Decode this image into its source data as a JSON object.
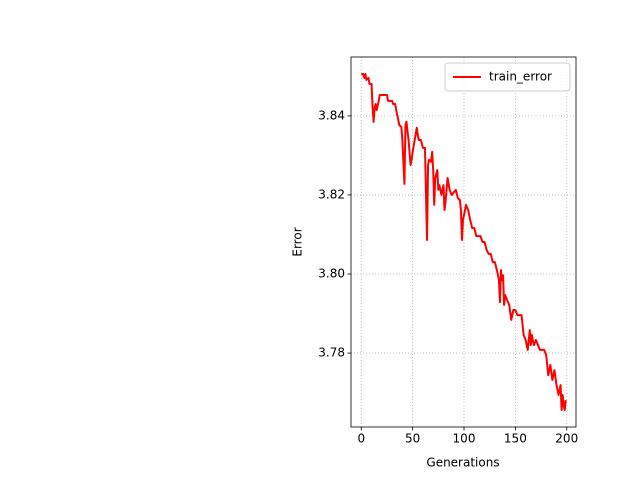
{
  "chart_data": {
    "type": "line",
    "xlabel": "Generations",
    "ylabel": "Error",
    "xlim": [
      -10,
      209
    ],
    "ylim": [
      3.7613,
      3.8549
    ],
    "xticks": [
      0,
      50,
      100,
      150,
      200
    ],
    "yticks": [
      3.78,
      {
        "value": 3.8,
        "label": "3.80"
      },
      3.82,
      3.84
    ],
    "grid": true,
    "legend": "upper right",
    "x": [
      0,
      2,
      3,
      4,
      5,
      7,
      8,
      10,
      11,
      12,
      13,
      14,
      15,
      17,
      18,
      25,
      26,
      30,
      31,
      33,
      34,
      37,
      39,
      40,
      42,
      43,
      44,
      46,
      48,
      49,
      50,
      52,
      54,
      55,
      56,
      58,
      60,
      62,
      64,
      65,
      66,
      68,
      69,
      70,
      71,
      72,
      74,
      75,
      76,
      78,
      80,
      81,
      82,
      84,
      86,
      88,
      92,
      94,
      96,
      97,
      98,
      99,
      100,
      102,
      104,
      106,
      108,
      110,
      112,
      116,
      118,
      120,
      122,
      124,
      126,
      128,
      130,
      132,
      134,
      135,
      136,
      137,
      138,
      139,
      140,
      142,
      144,
      146,
      148,
      150,
      152,
      156,
      158,
      160,
      162,
      164,
      165,
      166,
      168,
      170,
      172,
      174,
      176,
      178,
      180,
      182,
      184,
      186,
      188,
      190,
      192,
      194,
      195,
      196,
      197,
      198,
      199
    ],
    "series": [
      {
        "name": "train_error",
        "color": "#ff0000",
        "values": [
          3.8506,
          3.8506,
          3.8496,
          3.8506,
          3.8491,
          3.8496,
          3.8481,
          3.8481,
          3.8423,
          3.8385,
          3.842,
          3.843,
          3.8415,
          3.8438,
          3.8453,
          3.8453,
          3.8438,
          3.8438,
          3.843,
          3.843,
          3.8415,
          3.8377,
          3.8372,
          3.8339,
          3.8228,
          3.8377,
          3.8385,
          3.8339,
          3.8276,
          3.8289,
          3.8309,
          3.8339,
          3.837,
          3.8352,
          3.8339,
          3.8339,
          3.8319,
          3.8319,
          3.8086,
          3.8276,
          3.8289,
          3.8284,
          3.8309,
          3.8263,
          3.8175,
          3.8243,
          3.8263,
          3.8213,
          3.8225,
          3.82,
          3.8225,
          3.8162,
          3.8182,
          3.8243,
          3.8213,
          3.82,
          3.8213,
          3.8192,
          3.8187,
          3.8162,
          3.8086,
          3.8137,
          3.8149,
          3.8175,
          3.8162,
          3.8137,
          3.8116,
          3.8116,
          3.8096,
          3.8096,
          3.8081,
          3.8081,
          3.8061,
          3.8051,
          3.8051,
          3.803,
          3.803,
          3.801,
          3.7985,
          3.7929,
          3.801,
          3.7985,
          3.7997,
          3.7922,
          3.7947,
          3.7934,
          3.7922,
          3.7884,
          3.7909,
          3.7909,
          3.7896,
          3.7896,
          3.7846,
          3.7833,
          3.7808,
          3.7858,
          3.782,
          3.7846,
          3.782,
          3.7833,
          3.782,
          3.7808,
          3.7808,
          3.7808,
          3.7795,
          3.7744,
          3.777,
          3.7732,
          3.7757,
          3.7719,
          3.7694,
          3.7719,
          3.7656,
          3.7694,
          3.7668,
          3.7656,
          3.7681
        ]
      }
    ]
  }
}
